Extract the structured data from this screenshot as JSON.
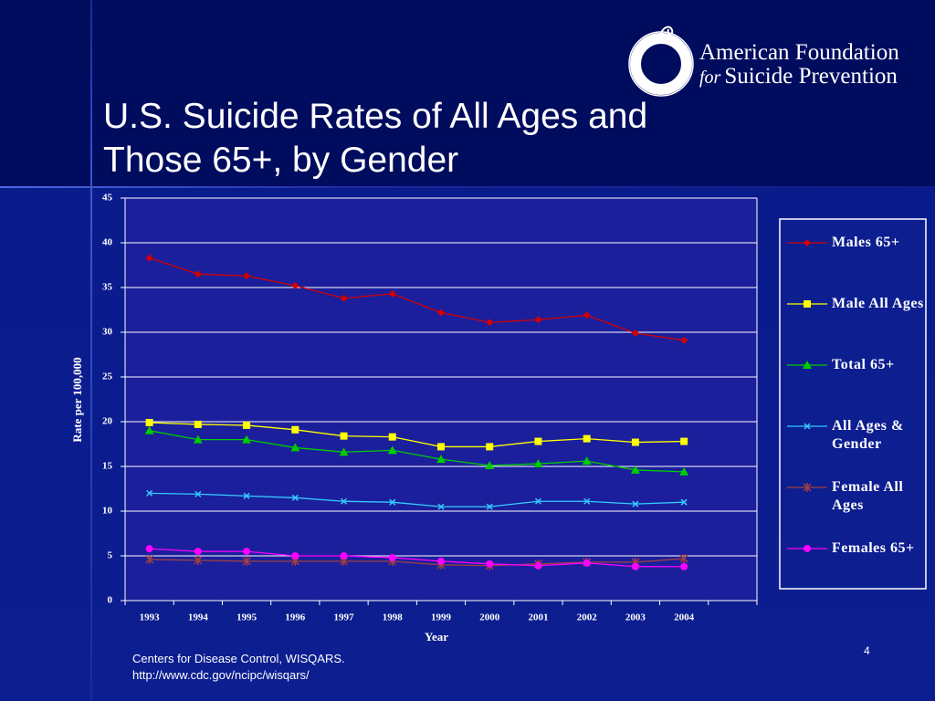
{
  "slide": {
    "title": "U.S. Suicide Rates of All Ages and Those 65+, by Gender",
    "logo": {
      "line1": "American Foundation",
      "for": "for",
      "line2": "Suicide Prevention"
    },
    "source": [
      "Centers for Disease Control, WISQARS.",
      "http://www.cdc.gov/ncipc/wisqars/"
    ],
    "page_number": "4"
  },
  "chart_data": {
    "type": "line",
    "x_label": "Year",
    "y_label": "Rate per 100,000",
    "categories": [
      "1993",
      "1994",
      "1995",
      "1996",
      "1997",
      "1998",
      "1999",
      "2000",
      "2001",
      "2002",
      "2003",
      "2004",
      null
    ],
    "ylim": [
      0,
      45
    ],
    "yticks": [
      0,
      5,
      10,
      15,
      20,
      25,
      30,
      35,
      40,
      45
    ],
    "grid": true,
    "legend": "right",
    "series": [
      {
        "name": "Males 65+",
        "color": "#d40000",
        "marker": "diamond",
        "values": [
          38.3,
          36.5,
          36.3,
          35.2,
          33.8,
          34.3,
          32.2,
          31.1,
          31.4,
          31.9,
          29.9,
          29.1,
          null
        ]
      },
      {
        "name": "Male All Ages",
        "color": "#ffff00",
        "marker": "square",
        "values": [
          19.9,
          19.7,
          19.6,
          19.1,
          18.4,
          18.3,
          17.2,
          17.2,
          17.8,
          18.1,
          17.7,
          17.8,
          null
        ]
      },
      {
        "name": "Total 65+",
        "color": "#00cc00",
        "marker": "triangle",
        "values": [
          19.0,
          18.0,
          18.0,
          17.1,
          16.6,
          16.8,
          15.8,
          15.1,
          15.3,
          15.6,
          14.6,
          14.4,
          null
        ]
      },
      {
        "name": "All Ages & Gender",
        "color": "#33ccff",
        "marker": "x",
        "values": [
          12.0,
          11.9,
          11.7,
          11.5,
          11.1,
          11.0,
          10.5,
          10.5,
          11.1,
          11.1,
          10.8,
          11.0,
          null
        ]
      },
      {
        "name": "Female All Ages",
        "color": "#a04040",
        "marker": "star",
        "values": [
          4.6,
          4.5,
          4.4,
          4.4,
          4.4,
          4.4,
          4.0,
          3.9,
          4.1,
          4.3,
          4.3,
          4.7,
          null
        ]
      },
      {
        "name": "Females 65+",
        "color": "#ff00ff",
        "marker": "circle",
        "values": [
          5.8,
          5.5,
          5.5,
          5.0,
          5.0,
          4.8,
          4.4,
          4.1,
          3.9,
          4.2,
          3.8,
          3.8,
          null
        ]
      }
    ]
  }
}
